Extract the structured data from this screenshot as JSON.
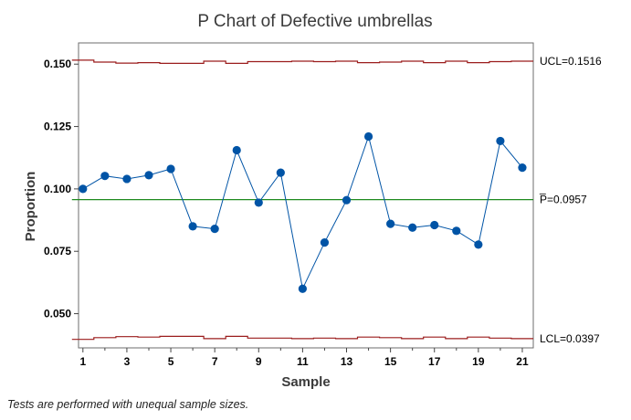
{
  "chart_data": {
    "type": "line",
    "title": "P Chart of Defective umbrellas",
    "xlabel": "Sample",
    "ylabel": "Proportion",
    "x": [
      1,
      2,
      3,
      4,
      5,
      6,
      7,
      8,
      9,
      10,
      11,
      12,
      13,
      14,
      15,
      16,
      17,
      18,
      19,
      20,
      21
    ],
    "values": [
      0.1,
      0.1052,
      0.104,
      0.1055,
      0.108,
      0.085,
      0.084,
      0.1155,
      0.0945,
      0.1065,
      0.06,
      0.0785,
      0.0955,
      0.121,
      0.086,
      0.0845,
      0.0855,
      0.0832,
      0.0777,
      0.1192,
      0.1085
    ],
    "xticks": [
      1,
      3,
      5,
      7,
      9,
      11,
      13,
      15,
      17,
      19,
      21
    ],
    "xtick_labels": [
      "1",
      "3",
      "5",
      "7",
      "9",
      "11",
      "13",
      "15",
      "17",
      "19",
      "21"
    ],
    "yticks": [
      0.05,
      0.075,
      0.1,
      0.125,
      0.15
    ],
    "ytick_labels": [
      "0.050",
      "0.075",
      "0.100",
      "0.125",
      "0.150"
    ],
    "xlim": [
      0.8,
      21.5
    ],
    "ylim": [
      0.0363,
      0.1585
    ],
    "center_line": 0.0957,
    "center_label": "P=0.0957",
    "center_label_bar": "_",
    "ucl": [
      0.1516,
      0.1508,
      0.1504,
      0.1506,
      0.1503,
      0.1503,
      0.1512,
      0.1503,
      0.151,
      0.151,
      0.1512,
      0.151,
      0.1512,
      0.1506,
      0.1508,
      0.1512,
      0.1506,
      0.1512,
      0.1506,
      0.151,
      0.1512
    ],
    "lcl": [
      0.0397,
      0.0404,
      0.0408,
      0.0406,
      0.0409,
      0.0409,
      0.04,
      0.0409,
      0.0402,
      0.0402,
      0.04,
      0.0402,
      0.04,
      0.0406,
      0.0404,
      0.04,
      0.0406,
      0.04,
      0.0406,
      0.0402,
      0.04
    ],
    "ucl_label": "UCL=0.1516",
    "lcl_label": "LCL=0.0397",
    "grid": false,
    "legend": "none",
    "colors": {
      "points": "#0054a6",
      "line": "#0054a6",
      "center": "#1e8a1e",
      "limits": "#9b1c1c",
      "frame": "#6e6e6e"
    }
  },
  "footnote": "Tests are performed with unequal sample sizes."
}
